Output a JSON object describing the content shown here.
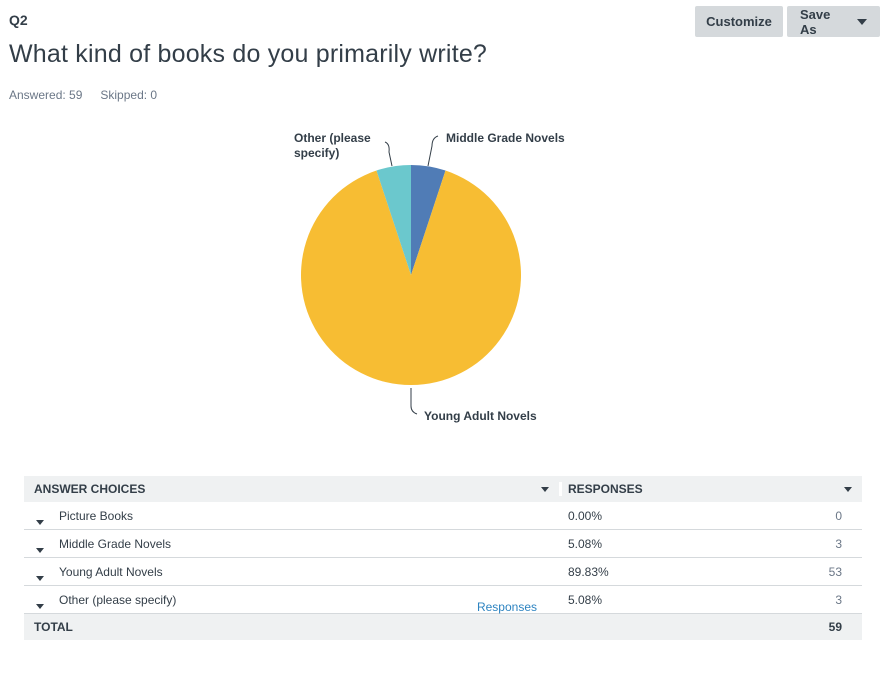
{
  "question": {
    "number": "Q2",
    "title": "What kind of books do you primarily write?",
    "answered": "Answered: 59",
    "skipped": "Skipped: 0"
  },
  "toolbar": {
    "customize_label": "Customize",
    "saveas_label": "Save As"
  },
  "chart_data": {
    "type": "pie",
    "slices": [
      {
        "label": "Picture Books",
        "value": 0.0,
        "color": "#f0f0f0"
      },
      {
        "label": "Middle Grade Novels",
        "value": 5.08,
        "color": "#507cb6"
      },
      {
        "label": "Young Adult Novels",
        "value": 89.83,
        "color": "#f7bd33"
      },
      {
        "label": "Other (please specify)",
        "value": 5.08,
        "color": "#6bc8cd"
      }
    ],
    "callouts": {
      "other": [
        "Other (please",
        "specify)"
      ],
      "middle": "Middle Grade Novels",
      "ya": "Young Adult Novels"
    }
  },
  "table": {
    "headers": {
      "choices": "ANSWER CHOICES",
      "responses": "RESPONSES"
    },
    "rows": [
      {
        "label": "Picture Books",
        "pct": "0.00%",
        "count": "0"
      },
      {
        "label": "Middle Grade Novels",
        "pct": "5.08%",
        "count": "3"
      },
      {
        "label": "Young Adult Novels",
        "pct": "89.83%",
        "count": "53"
      },
      {
        "label": "Other (please specify)",
        "pct": "5.08%",
        "count": "3",
        "link": "Responses"
      }
    ],
    "total": {
      "label": "TOTAL",
      "count": "59"
    }
  }
}
